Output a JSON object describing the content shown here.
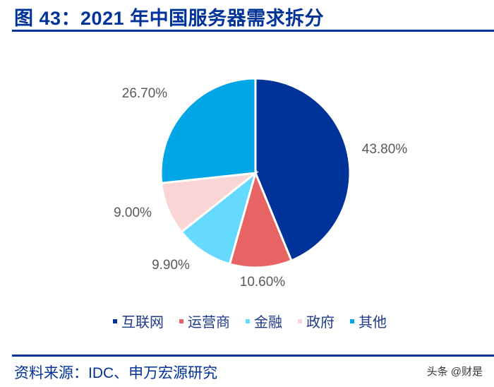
{
  "title": "图 43：2021 年中国服务器需求拆分",
  "source": "资料来源：IDC、申万宏源研究",
  "watermark": "头条 @财是",
  "chart_data": {
    "type": "pie",
    "title": "图 43：2021 年中国服务器需求拆分",
    "categories": [
      "互联网",
      "运营商",
      "金融",
      "政府",
      "其他"
    ],
    "values": [
      43.8,
      10.6,
      9.9,
      9.0,
      26.7
    ],
    "labels": [
      "43.80%",
      "10.60%",
      "9.90%",
      "9.00%",
      "26.70%"
    ],
    "colors": [
      "#003399",
      "#e86464",
      "#66d9ff",
      "#f9d5d6",
      "#00a6e6"
    ],
    "legend_position": "bottom"
  }
}
